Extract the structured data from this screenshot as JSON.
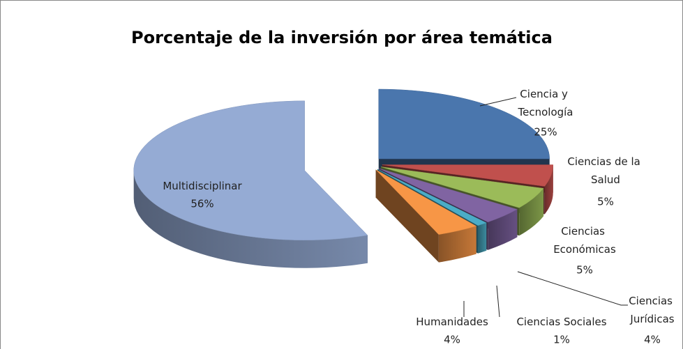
{
  "chart_data": {
    "type": "pie3d",
    "title": "Porcentaje de la inversión por área temática",
    "categories": [
      "Ciencia y Tecnología",
      "Ciencias de la Salud",
      "Ciencias Económicas",
      "Ciencias Jurídicas",
      "Ciencias Sociales",
      "Humanidades",
      "Multidisciplinar"
    ],
    "values": [
      25,
      5,
      5,
      4,
      1,
      4,
      56
    ],
    "value_labels": [
      "25%",
      "5%",
      "5%",
      "4%",
      "1%",
      "4%",
      "56%"
    ],
    "colors": [
      "#4a76ad",
      "#c0504d",
      "#9bbb59",
      "#8064a2",
      "#4bacc6",
      "#f79646",
      "#95abd4"
    ]
  }
}
